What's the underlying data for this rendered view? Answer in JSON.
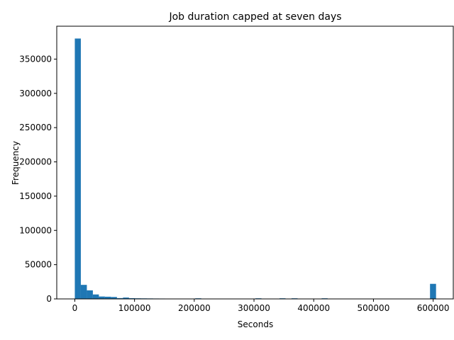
{
  "chart_data": {
    "type": "bar",
    "title": "Job duration capped at seven days",
    "xlabel": "Seconds",
    "ylabel": "Frequency",
    "xlim": [
      -30240,
      634880
    ],
    "ylim": [
      0,
      398000
    ],
    "xticks": [
      0,
      100000,
      200000,
      300000,
      400000,
      500000,
      600000
    ],
    "xtick_labels": [
      "0",
      "100000",
      "200000",
      "300000",
      "400000",
      "500000",
      "600000"
    ],
    "yticks": [
      0,
      50000,
      100000,
      150000,
      200000,
      250000,
      300000,
      350000
    ],
    "ytick_labels": [
      "0",
      "50000",
      "100000",
      "150000",
      "200000",
      "250000",
      "300000",
      "350000"
    ],
    "bin_width": 10080,
    "bin_starts": [
      0,
      10080,
      20160,
      30240,
      40320,
      50400,
      60480,
      70560,
      80640,
      90720,
      100800,
      110880,
      120960,
      131040,
      141120,
      151200,
      161280,
      171360,
      181440,
      191520,
      201600,
      211680,
      221760,
      231840,
      241920,
      252000,
      262080,
      272160,
      282240,
      292320,
      302400,
      312480,
      322560,
      332640,
      342720,
      352800,
      362880,
      372960,
      383040,
      393120,
      403200,
      413280,
      423360,
      433440,
      443520,
      453600,
      463680,
      473760,
      483840,
      493920,
      504000,
      514080,
      524160,
      534240,
      544320,
      554400,
      564480,
      574560,
      584640,
      594720
    ],
    "values": [
      380000,
      20500,
      12500,
      6500,
      3500,
      3200,
      2800,
      1200,
      2000,
      1100,
      900,
      800,
      700,
      600,
      550,
      500,
      450,
      400,
      380,
      350,
      900,
      400,
      350,
      300,
      300,
      280,
      250,
      230,
      220,
      200,
      900,
      200,
      150,
      120,
      900,
      120,
      900,
      100,
      100,
      80,
      80,
      900,
      80,
      60,
      60,
      50,
      50,
      50,
      40,
      40,
      40,
      40,
      30,
      30,
      30,
      30,
      30,
      30,
      30,
      22000
    ],
    "bar_color": "#1f77b4"
  }
}
